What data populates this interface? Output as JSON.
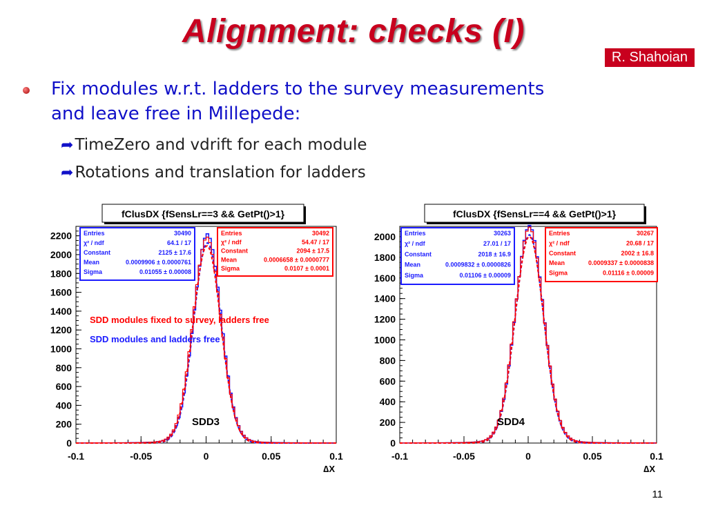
{
  "slide": {
    "title": "Alignment: checks (I)",
    "author": "R. Shahoian",
    "bullet": "Fix modules w.r.t. ladders to the survey measurements and leave free in Millepede:",
    "subbullets": [
      "TimeZero and vdrift for each module",
      "Rotations and translation for ladders"
    ],
    "page_number": "11"
  },
  "chart_data": [
    {
      "type": "line",
      "title": "fClusDX  {fSensLr==3 && GetPt()>1}",
      "xlabel": "∆X",
      "ylabel": "",
      "xlim": [
        -0.1,
        0.1
      ],
      "ylim": [
        0,
        2300
      ],
      "xticks": [
        "-0.1",
        "-0.05",
        "0",
        "0.05",
        "0.1"
      ],
      "yticks": [
        "0",
        "200",
        "400",
        "600",
        "800",
        "1000",
        "1200",
        "1400",
        "1600",
        "1800",
        "2000",
        "2200"
      ],
      "annotation": "SDD3",
      "legend": [
        {
          "text": "SDD modules fixed to survey, ladders free",
          "color": "#ff0000"
        },
        {
          "text": "SDD modules and ladders free",
          "color": "#1a1aff"
        }
      ],
      "stats": [
        {
          "color": "#1a1aff",
          "rows": [
            [
              "Entries",
              "30490"
            ],
            [
              "χ² / ndf",
              "64.1 / 17"
            ],
            [
              "Constant",
              "2125 ± 17.6"
            ],
            [
              "Mean",
              "0.0009906 ± 0.0000761"
            ],
            [
              "Sigma",
              "0.01055 ± 0.00008"
            ]
          ]
        },
        {
          "color": "#ff0000",
          "rows": [
            [
              "Entries",
              "30492"
            ],
            [
              "χ² / ndf",
              "54.47 / 17"
            ],
            [
              "Constant",
              "2094 ± 17.5"
            ],
            [
              "Mean",
              "0.0006658 ± 0.0000777"
            ],
            [
              "Sigma",
              "0.0107 ± 0.0001"
            ]
          ]
        }
      ],
      "series": [
        {
          "name": "SDD modules and ladders free",
          "color": "#1a1aff",
          "constant": 2125,
          "mean": 0.0009906,
          "sigma": 0.01055
        },
        {
          "name": "SDD modules fixed to survey, ladders free",
          "color": "#ff0000",
          "constant": 2094,
          "mean": 0.0006658,
          "sigma": 0.0107
        }
      ]
    },
    {
      "type": "line",
      "title": "fClusDX  {fSensLr==4 && GetPt()>1}",
      "xlabel": "∆X",
      "ylabel": "",
      "xlim": [
        -0.1,
        0.1
      ],
      "ylim": [
        0,
        2100
      ],
      "xticks": [
        "-0.1",
        "-0.05",
        "0",
        "0.05",
        "0.1"
      ],
      "yticks": [
        "0",
        "200",
        "400",
        "600",
        "800",
        "1000",
        "1200",
        "1400",
        "1600",
        "1800",
        "2000"
      ],
      "annotation": "SDD4",
      "legend": [],
      "stats": [
        {
          "color": "#1a1aff",
          "rows": [
            [
              "Entries",
              "30263"
            ],
            [
              "χ² / ndf",
              "27.01 / 17"
            ],
            [
              "Constant",
              "2018 ± 16.9"
            ],
            [
              "Mean",
              "0.0009832 ± 0.0000826"
            ],
            [
              "Sigma",
              "0.01106 ± 0.00009"
            ]
          ]
        },
        {
          "color": "#ff0000",
          "rows": [
            [
              "Entries",
              "30267"
            ],
            [
              "χ² / ndf",
              "20.68 / 17"
            ],
            [
              "Constant",
              "2002 ± 16.8"
            ],
            [
              "Mean",
              "0.0009337 ± 0.0000838"
            ],
            [
              "Sigma",
              "0.01116 ± 0.00009"
            ]
          ]
        }
      ],
      "series": [
        {
          "name": "",
          "color": "#1a1aff",
          "constant": 2018,
          "mean": 0.0009832,
          "sigma": 0.01106
        },
        {
          "name": "",
          "color": "#ff0000",
          "constant": 2002,
          "mean": 0.0009337,
          "sigma": 0.01116
        }
      ]
    }
  ]
}
